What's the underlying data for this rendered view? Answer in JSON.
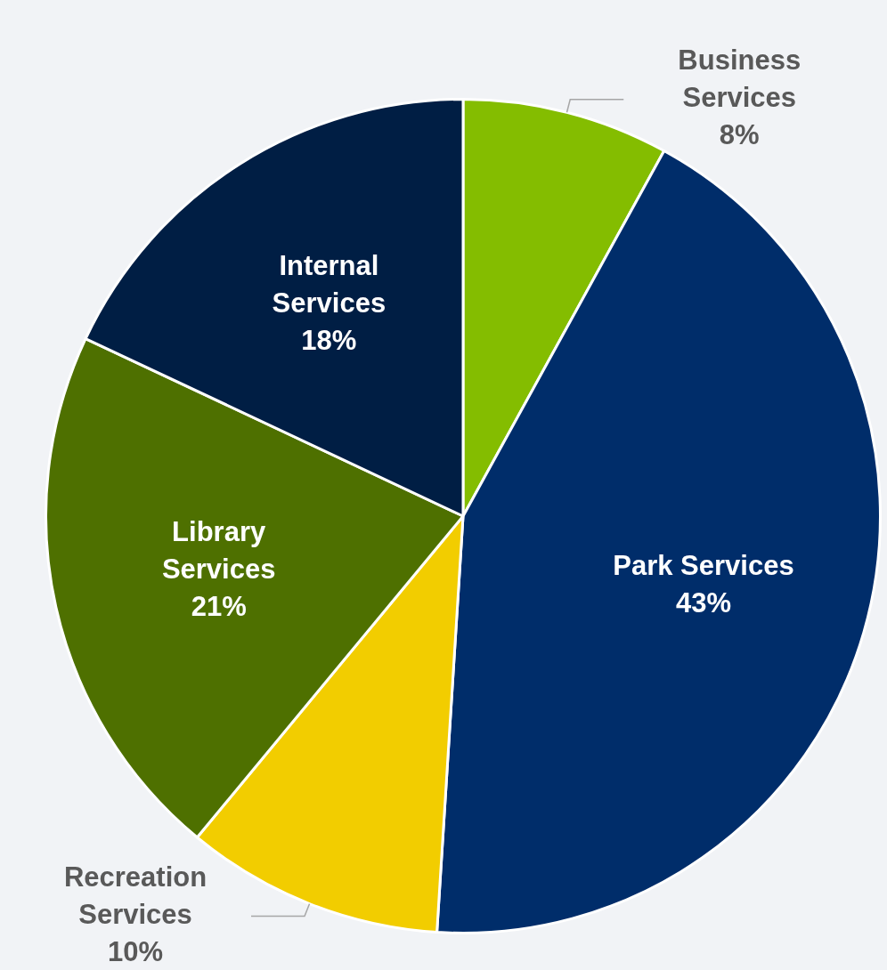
{
  "chart_data": {
    "type": "pie",
    "categories": [
      "Business Services",
      "Park Services",
      "Recreation Services",
      "Library Services",
      "Internal Services"
    ],
    "values": [
      8,
      43,
      10,
      21,
      18
    ],
    "value_labels": [
      "8%",
      "43%",
      "10%",
      "21%",
      "18%"
    ],
    "colors": [
      "#84bd00",
      "#002d6a",
      "#f2cd00",
      "#4e7000",
      "#001e44"
    ],
    "legend": false
  }
}
